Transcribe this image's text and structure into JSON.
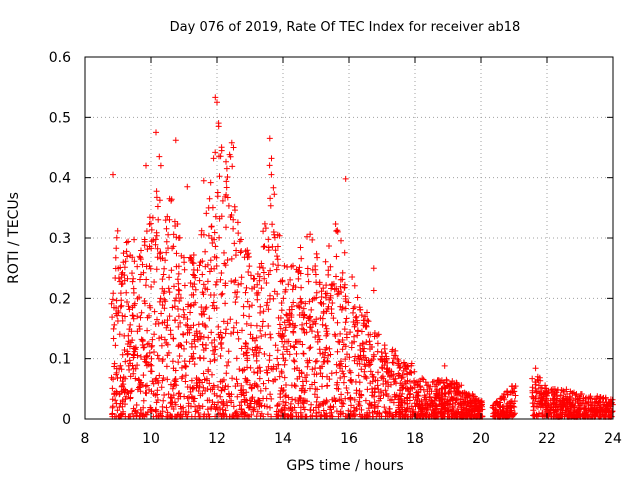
{
  "chart_data": {
    "type": "scatter",
    "title": "Day 076 of 2019, Rate Of TEC Index for receiver ab18",
    "xlabel": "GPS time / hours",
    "ylabel": "ROTI / TECUs",
    "xlim": [
      8,
      24
    ],
    "ylim": [
      0,
      0.6
    ],
    "xticks": [
      8,
      10,
      12,
      14,
      16,
      18,
      20,
      22,
      24
    ],
    "yticks": [
      0,
      0.1,
      0.2,
      0.3,
      0.4,
      0.5,
      0.6
    ],
    "xtick_labels": [
      "8",
      "10",
      "12",
      "14",
      "16",
      "18",
      "20",
      "22",
      "24"
    ],
    "ytick_labels": [
      "0",
      "0.1",
      "0.2",
      "0.3",
      "0.4",
      "0.5",
      "0.6"
    ],
    "grid": true,
    "marker": "+",
    "marker_color": "#ff0000",
    "series": [
      {
        "name": "ROTI",
        "envelope": [
          {
            "x": 8.8,
            "max": 0.19
          },
          {
            "x": 9.0,
            "max": 0.33
          },
          {
            "x": 9.4,
            "max": 0.3
          },
          {
            "x": 9.8,
            "max": 0.3
          },
          {
            "x": 10.2,
            "max": 0.42
          },
          {
            "x": 10.6,
            "max": 0.38
          },
          {
            "x": 11.0,
            "max": 0.29
          },
          {
            "x": 11.4,
            "max": 0.27
          },
          {
            "x": 11.8,
            "max": 0.4
          },
          {
            "x": 12.0,
            "max": 0.5
          },
          {
            "x": 12.4,
            "max": 0.45
          },
          {
            "x": 12.8,
            "max": 0.31
          },
          {
            "x": 13.2,
            "max": 0.22
          },
          {
            "x": 13.6,
            "max": 0.43
          },
          {
            "x": 14.0,
            "max": 0.28
          },
          {
            "x": 14.4,
            "max": 0.26
          },
          {
            "x": 14.8,
            "max": 0.34
          },
          {
            "x": 15.2,
            "max": 0.26
          },
          {
            "x": 15.6,
            "max": 0.34
          },
          {
            "x": 16.0,
            "max": 0.25
          },
          {
            "x": 16.6,
            "max": 0.17
          },
          {
            "x": 17.2,
            "max": 0.12
          },
          {
            "x": 17.8,
            "max": 0.1
          },
          {
            "x": 18.4,
            "max": 0.06
          },
          {
            "x": 19.0,
            "max": 0.07
          },
          {
            "x": 19.6,
            "max": 0.05
          },
          {
            "x": 20.0,
            "max": 0.03
          },
          {
            "x": 20.5,
            "max": 0.03
          },
          {
            "x": 21.0,
            "max": 0.06
          },
          {
            "x": 21.6,
            "max": 0.09
          },
          {
            "x": 22.0,
            "max": 0.05
          },
          {
            "x": 22.6,
            "max": 0.05
          },
          {
            "x": 23.2,
            "max": 0.04
          },
          {
            "x": 24.0,
            "max": 0.035
          }
        ],
        "gaps": [
          [
            20.05,
            20.35
          ],
          [
            21.05,
            21.55
          ]
        ],
        "outliers": [
          {
            "x": 8.85,
            "y": 0.405
          },
          {
            "x": 9.85,
            "y": 0.42
          },
          {
            "x": 10.15,
            "y": 0.475
          },
          {
            "x": 10.25,
            "y": 0.435
          },
          {
            "x": 10.3,
            "y": 0.42
          },
          {
            "x": 10.75,
            "y": 0.462
          },
          {
            "x": 11.1,
            "y": 0.385
          },
          {
            "x": 11.6,
            "y": 0.395
          },
          {
            "x": 11.95,
            "y": 0.533
          },
          {
            "x": 12.0,
            "y": 0.525
          },
          {
            "x": 12.05,
            "y": 0.485
          },
          {
            "x": 12.3,
            "y": 0.415
          },
          {
            "x": 12.45,
            "y": 0.458
          },
          {
            "x": 12.5,
            "y": 0.45
          },
          {
            "x": 13.6,
            "y": 0.465
          },
          {
            "x": 13.65,
            "y": 0.432
          },
          {
            "x": 15.9,
            "y": 0.398
          },
          {
            "x": 16.75,
            "y": 0.25
          },
          {
            "x": 16.75,
            "y": 0.213
          },
          {
            "x": 18.9,
            "y": 0.088
          }
        ]
      }
    ]
  }
}
